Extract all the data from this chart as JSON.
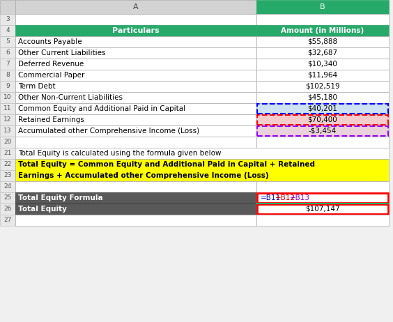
{
  "col_header_bg": "#27A96A",
  "col_header_fg": "#FFFFFF",
  "yellow_bg": "#FFFF00",
  "dark_row_bg": "#595959",
  "dark_row_fg": "#FFFFFF",
  "pink_bg": "#F4CCCC",
  "light_blue_bg": "#CFE2F3",
  "light_purple_bg": "#EAD1DC",
  "red_border": "#FF0000",
  "blue_border": "#0000FF",
  "purple_border": "#9900FF",
  "col_a_label": "A",
  "col_b_label": "B",
  "header_particulars": "Particulars",
  "header_amount": "Amount (in Millions)",
  "rows": [
    {
      "row": "5",
      "label": "Accounts Payable",
      "value": "$55,888",
      "value_bg": "#FFFFFF"
    },
    {
      "row": "6",
      "label": "Other Current Liabilities",
      "value": "$32,687",
      "value_bg": "#FFFFFF"
    },
    {
      "row": "7",
      "label": "Deferred Revenue",
      "value": "$10,340",
      "value_bg": "#FFFFFF"
    },
    {
      "row": "8",
      "label": "Commercial Paper",
      "value": "$11,964",
      "value_bg": "#FFFFFF"
    },
    {
      "row": "9",
      "label": "Term Debt",
      "value": "$102,519",
      "value_bg": "#FFFFFF"
    },
    {
      "row": "10",
      "label": "Other Non-Current Liabilities",
      "value": "$45,180",
      "value_bg": "#FFFFFF"
    },
    {
      "row": "11",
      "label": "Common Equity and Additional Paid in Capital",
      "value": "$40,201",
      "value_bg": "#CFE2F3"
    },
    {
      "row": "12",
      "label": "Retained Earnings",
      "value": "$70,400",
      "value_bg": "#F4CCCC"
    },
    {
      "row": "13",
      "label": "Accumulated other Comprehensive Income (Loss)",
      "value": "-$3,454",
      "value_bg": "#EAD1DC"
    }
  ],
  "row21_text": "Total Equity is calculated using the formula given below",
  "row22_text": "Total Equity = Common Equity and Additional Paid in Capital + Retained",
  "row23_text": "Earnings + Accumulated other Comprehensive Income (Loss)",
  "row25_left": "Total Equity Formula",
  "row25_right_parts": [
    "=B11",
    "+B12",
    "+B13"
  ],
  "row25_right_colors": [
    "#0000CC",
    "#CC0000",
    "#9900CC"
  ],
  "row26_left": "Total Equity",
  "row26_right": "$107,147",
  "fig_w": 5.64,
  "fig_h": 4.62,
  "dpi": 100
}
